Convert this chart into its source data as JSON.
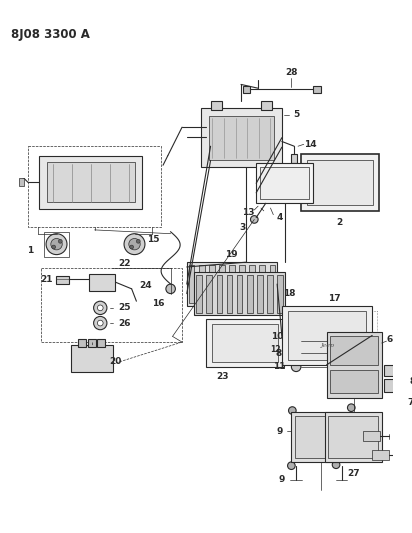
{
  "title": "8J08 3300 A",
  "bg_color": "#ffffff",
  "line_color": "#2a2a2a",
  "title_fontsize": 8.5,
  "label_fontsize": 6.5,
  "fig_width": 4.12,
  "fig_height": 5.33,
  "dpi": 100
}
